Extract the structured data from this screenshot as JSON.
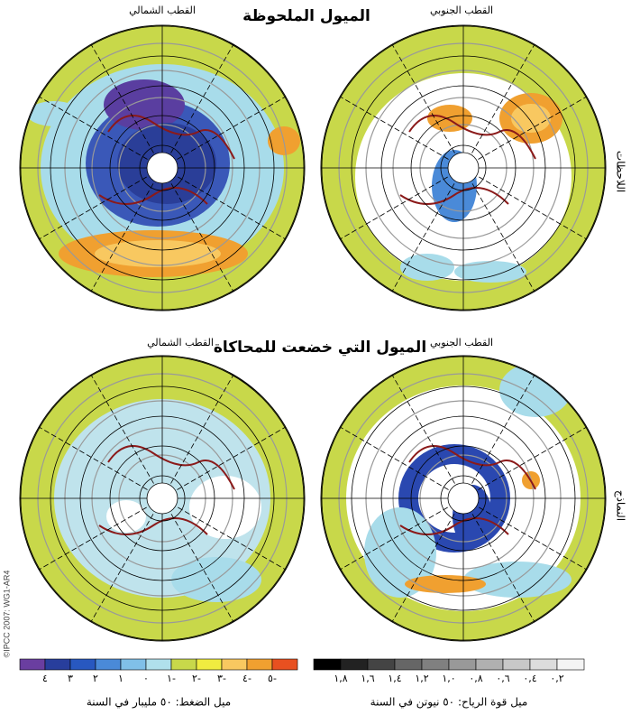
{
  "header": {
    "title": "الميول الملحوظة",
    "subtitle": "الميول التي خضعت للمحاكاة"
  },
  "panels": {
    "top": [
      "القطب الشمالي",
      "القطب الجنوبي"
    ],
    "bottom": [
      "القطب الشمالي",
      "القطب الجنوبي"
    ]
  },
  "row_labels": [
    "اللاحظات",
    "النماذج"
  ],
  "credit": "©IPCC 2007: WG1-AR4",
  "colorbars": [
    {
      "caption": "ميل الضغط: ٥٠ مليبار في السنة",
      "labels": [
        "٤",
        "٣",
        "٢",
        "١",
        "٠",
        "١-",
        "٢-",
        "٣-",
        "٤-",
        "٥-"
      ],
      "colors": [
        "#6a3ea0",
        "#283e9c",
        "#2858c0",
        "#4a8ad8",
        "#80c0e8",
        "#b0e0ec",
        "#c8d84a",
        "#f0ec40",
        "#f8c860",
        "#f0a030",
        "#e85020"
      ]
    },
    {
      "caption": "ميل قوة الرياح: ٥٠ نيوتن في السنة",
      "labels": [
        "١,٨",
        "١,٦",
        "١,٤",
        "١,٢",
        "١,٠",
        "٠,٨",
        "٠,٦",
        "٠,٤",
        "٠,٢"
      ],
      "colors": [
        "#000000",
        "#222222",
        "#444444",
        "#666666",
        "#808080",
        "#999999",
        "#b0b0b0",
        "#c8c8c8",
        "#dcdcdc",
        "#f4f4f4"
      ]
    }
  ]
}
